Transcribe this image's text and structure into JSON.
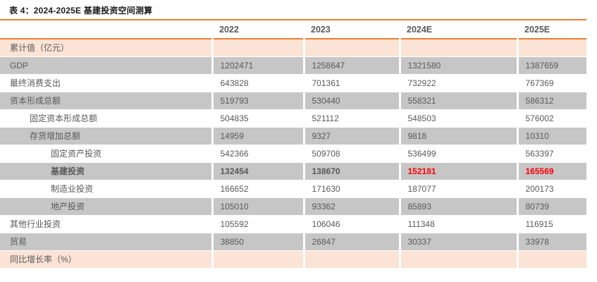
{
  "page": {
    "title": "表 4：2024-2025E 基建投资空间测算"
  },
  "colors": {
    "accent_orange": "#ED7D31",
    "section_row_bg": "#FBE3D5",
    "stripe_row_bg": "#C6C6C7",
    "body_text": "#595959",
    "bold_text": "#3F3F3F",
    "highlight_red": "#FF0000"
  },
  "table": {
    "label_column_header": "",
    "columns": [
      "2022",
      "2023",
      "2024E",
      "2025E"
    ],
    "rows": [
      {
        "label": "累计值（亿元）",
        "indent": 0,
        "shade": "section",
        "bold": false,
        "values": [
          "",
          "",
          "",
          ""
        ],
        "red_cols": []
      },
      {
        "label": "GDP",
        "indent": 0,
        "shade": "gray",
        "bold": false,
        "values": [
          "1202471",
          "1258647",
          "1321580",
          "1387659"
        ],
        "red_cols": []
      },
      {
        "label": "最终消费支出",
        "indent": 0,
        "shade": "white",
        "bold": false,
        "values": [
          "643828",
          "701361",
          "732922",
          "767369"
        ],
        "red_cols": []
      },
      {
        "label": "资本形成总额",
        "indent": 0,
        "shade": "gray",
        "bold": false,
        "values": [
          "519793",
          "530440",
          "558321",
          "586312"
        ],
        "red_cols": []
      },
      {
        "label": "固定资本形成总额",
        "indent": 1,
        "shade": "white",
        "bold": false,
        "values": [
          "504835",
          "521112",
          "548503",
          "576002"
        ],
        "red_cols": []
      },
      {
        "label": "存货增加总额",
        "indent": 1,
        "shade": "gray",
        "bold": false,
        "values": [
          "14959",
          "9327",
          "9818",
          "10310"
        ],
        "red_cols": []
      },
      {
        "label": "固定资产投资",
        "indent": 2,
        "shade": "white",
        "bold": false,
        "values": [
          "542366",
          "509708",
          "536499",
          "563397"
        ],
        "red_cols": []
      },
      {
        "label": "基建投资",
        "indent": 2,
        "shade": "gray",
        "bold": true,
        "values": [
          "132454",
          "138670",
          "152181",
          "165569"
        ],
        "red_cols": [
          2,
          3
        ]
      },
      {
        "label": "制造业投资",
        "indent": 2,
        "shade": "white",
        "bold": false,
        "values": [
          "166652",
          "171630",
          "187077",
          "200173"
        ],
        "red_cols": []
      },
      {
        "label": "地产投资",
        "indent": 2,
        "shade": "gray",
        "bold": false,
        "values": [
          "105010",
          "93362",
          "85893",
          "80739"
        ],
        "red_cols": []
      },
      {
        "label": "其他行业投资",
        "indent": 0,
        "shade": "white",
        "bold": false,
        "values": [
          "105592",
          "106046",
          "111348",
          "116915"
        ],
        "red_cols": []
      },
      {
        "label": "贸易",
        "indent": 0,
        "shade": "gray",
        "bold": false,
        "values": [
          "38850",
          "26847",
          "30337",
          "33978"
        ],
        "red_cols": []
      },
      {
        "label": "同比增长率（%）",
        "indent": 0,
        "shade": "section",
        "bold": false,
        "values": [
          "",
          "",
          "",
          ""
        ],
        "red_cols": []
      }
    ]
  }
}
